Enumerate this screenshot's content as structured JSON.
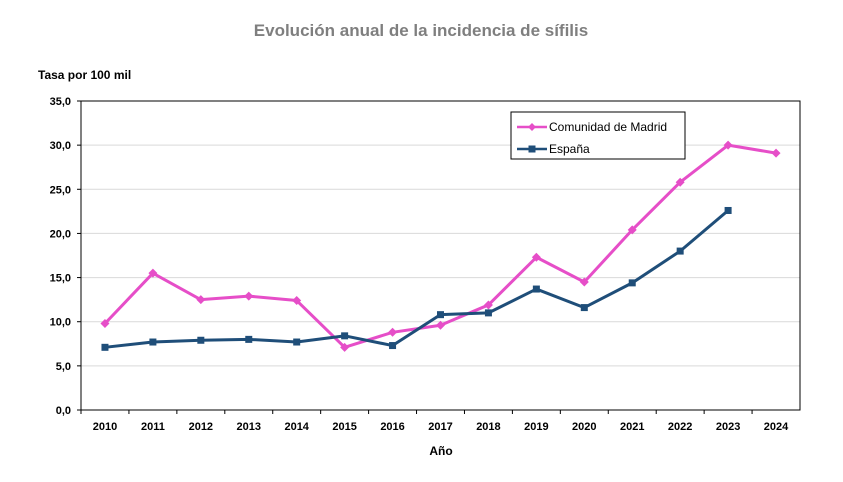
{
  "chart_data": {
    "type": "line",
    "title": "Evolución anual de la incidencia de sífilis",
    "ylabel": "Tasa por 100 mil",
    "xlabel": "Año",
    "categories": [
      "2010",
      "2011",
      "2012",
      "2013",
      "2014",
      "2015",
      "2016",
      "2017",
      "2018",
      "2019",
      "2020",
      "2021",
      "2022",
      "2023",
      "2024"
    ],
    "ylim": [
      0,
      35
    ],
    "yticks": [
      "0,0",
      "5,0",
      "10,0",
      "15,0",
      "20,0",
      "25,0",
      "30,0",
      "35,0"
    ],
    "grid": true,
    "legend_position": "top-right",
    "series": [
      {
        "name": "Comunidad de Madrid",
        "color": "#e64ec8",
        "marker": "diamond",
        "values": [
          9.8,
          15.5,
          12.5,
          12.9,
          12.4,
          7.1,
          8.8,
          9.6,
          11.9,
          17.3,
          14.5,
          20.4,
          25.8,
          30.0,
          29.1
        ]
      },
      {
        "name": "España",
        "color": "#1f4e79",
        "marker": "square",
        "values": [
          7.1,
          7.7,
          7.9,
          8.0,
          7.7,
          8.4,
          7.3,
          10.8,
          11.0,
          13.7,
          11.6,
          14.4,
          18.0,
          22.6,
          null
        ]
      }
    ]
  }
}
